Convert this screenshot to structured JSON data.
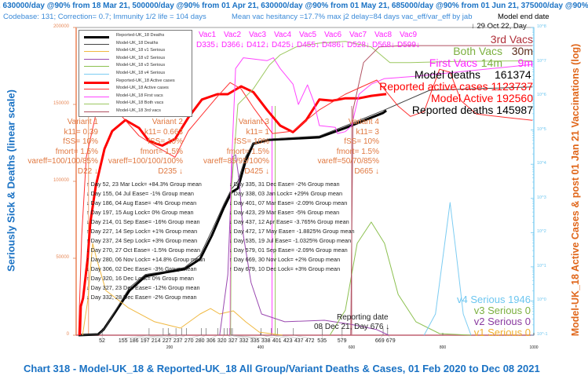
{
  "header": {
    "line1": ", 630000/day @90% from 18 Mar 21, 500000/day @90% from 01 Apr 21, 630000/day @90% from 01 May 21, 685000/day @90% from 01 Jun 21, 375000/day @90% from 13 Ju",
    "line2a": "Codebase: 131; Correction= 0.7; Immunity 1/2 life = 104 days",
    "line2b": "Mean vac hesitancy =17.7% max j2 delay=84 days vac_eff/var_eff by jab",
    "model_end_1": "Model end date",
    "model_end_2": "↓ 29 Oct 22, Day"
  },
  "chart_data": {
    "type": "line",
    "title": "Chart 318 - Model-UK_18 & Reported-UK_18 All Group/Variant Deaths & Cases, 01 Feb 2020 to Dec 08 2021",
    "ylabel": "Seriously Sick & Deaths (linear scale)",
    "y2label": "Model-UK_18 Active Cases & post 01 Jan 21 Vaccinations (log)",
    "xlim": [
      0,
      1000
    ],
    "ylim": [
      0,
      200000
    ],
    "y2lim": [
      0.1,
      100000000
    ],
    "y2scale": "log",
    "grid": false,
    "legend_placement": "top-left",
    "yticks": [
      "200000",
      "150000",
      "100000",
      "50000",
      "0"
    ],
    "y2ticks": [
      "10^8",
      "10^7",
      "10^6",
      "10^5",
      "10^4",
      "10^3",
      "10^2",
      "10^1",
      "10^0",
      "10^-1"
    ],
    "xticks_major": [
      "200",
      "400",
      "600",
      "800",
      "1000"
    ],
    "xticks_events": [
      "52",
      "155",
      "186",
      "197",
      "214",
      "227",
      "237",
      "270",
      "280",
      "306",
      "320",
      "327",
      "332",
      "335",
      "338",
      "401",
      "423",
      "437",
      "472",
      "535",
      "579",
      "669",
      "679"
    ],
    "series": [
      {
        "name": "Reported-UK_18 Deaths",
        "axis": "left",
        "color": "#000000",
        "width": 3,
        "points": [
          [
            0,
            0
          ],
          [
            43,
            500
          ],
          [
            55,
            3600
          ],
          [
            78,
            13800
          ],
          [
            112,
            29100
          ],
          [
            147,
            38300
          ],
          [
            190,
            40800
          ],
          [
            233,
            42900
          ],
          [
            267,
            49500
          ],
          [
            293,
            64800
          ],
          [
            319,
            82700
          ],
          [
            336,
            92900
          ],
          [
            350,
            95400
          ],
          [
            367,
            113300
          ],
          [
            384,
            124500
          ],
          [
            419,
            127000
          ],
          [
            529,
            128600
          ],
          [
            586,
            134700
          ],
          [
            669,
            144500
          ],
          [
            676,
            145987
          ]
        ]
      },
      {
        "name": "Model-UK_18 Deaths",
        "axis": "left",
        "color": "#444444",
        "width": 1,
        "points": [
          [
            0,
            0
          ],
          [
            45,
            600
          ],
          [
            58,
            4500
          ],
          [
            80,
            15500
          ],
          [
            112,
            31000
          ],
          [
            147,
            39500
          ],
          [
            190,
            41500
          ],
          [
            233,
            44000
          ],
          [
            267,
            52000
          ],
          [
            293,
            68000
          ],
          [
            319,
            85000
          ],
          [
            336,
            95000
          ],
          [
            350,
            100000
          ],
          [
            367,
            116000
          ],
          [
            384,
            125000
          ],
          [
            419,
            127500
          ],
          [
            529,
            129500
          ],
          [
            586,
            136000
          ],
          [
            669,
            146000
          ],
          [
            771,
            159200
          ],
          [
            997,
            161374
          ]
        ]
      },
      {
        "name": "Model-UK_18 v1 Serious",
        "axis": "left",
        "color": "#f0b840",
        "width": 1,
        "points": [
          [
            9,
            0
          ],
          [
            21,
            24000
          ],
          [
            31,
            59700
          ],
          [
            40,
            49500
          ],
          [
            60,
            29100
          ],
          [
            109,
            17900
          ],
          [
            167,
            8700
          ],
          [
            224,
            4600
          ],
          [
            267,
            13800
          ],
          [
            290,
            17300
          ],
          [
            310,
            13800
          ],
          [
            340,
            15800
          ],
          [
            367,
            8700
          ],
          [
            397,
            2000
          ],
          [
            448,
            0
          ]
        ]
      },
      {
        "name": "Model-UK_18 v2 Serious",
        "axis": "left",
        "color": "#9a48b0",
        "width": 1,
        "points": [
          [
            310,
            0
          ],
          [
            328,
            39300
          ],
          [
            338,
            115800
          ],
          [
            345,
            117300
          ],
          [
            353,
            100500
          ],
          [
            362,
            64800
          ],
          [
            379,
            34200
          ],
          [
            402,
            13800
          ],
          [
            453,
            8700
          ],
          [
            540,
            9700
          ],
          [
            598,
            7100
          ],
          [
            655,
            3600
          ],
          [
            681,
            0
          ]
        ]
      },
      {
        "name": "Model-UK_18 v3 Serious",
        "axis": "left",
        "color": "#8cc050",
        "width": 1,
        "points": [
          [
            552,
            0
          ],
          [
            586,
            16300
          ],
          [
            612,
            59700
          ],
          [
            643,
            73500
          ],
          [
            672,
            59700
          ],
          [
            702,
            26500
          ],
          [
            741,
            8700
          ],
          [
            793,
            1000
          ],
          [
            862,
            0
          ]
        ]
      },
      {
        "name": "Model-UK_18 v4 Serious",
        "axis": "left",
        "color": "#7cccf2",
        "width": 1,
        "points": [
          [
            759,
            0
          ],
          [
            784,
            13800
          ],
          [
            802,
            54600
          ],
          [
            816,
            86200
          ],
          [
            829,
            54600
          ],
          [
            845,
            13800
          ],
          [
            862,
            0
          ]
        ]
      },
      {
        "name": "Reported-UK_18 Active cases",
        "axis": "right",
        "color": "#ff0000",
        "width": 3,
        "points": [
          [
            3,
            0.1
          ],
          [
            5,
            0.7
          ],
          [
            10,
            1.2
          ],
          [
            20,
            17
          ],
          [
            26,
            200
          ],
          [
            38,
            2300
          ],
          [
            57,
            28000
          ],
          [
            74,
            93000
          ],
          [
            103,
            195000
          ],
          [
            133,
            115000
          ],
          [
            155,
            47000
          ],
          [
            184,
            35000
          ],
          [
            212,
            55000
          ],
          [
            241,
            230000
          ],
          [
            271,
            780000
          ],
          [
            305,
            1120000
          ],
          [
            328,
            1120000
          ],
          [
            357,
            1900000
          ],
          [
            384,
            1290000
          ],
          [
            414,
            390000
          ],
          [
            443,
            135000
          ],
          [
            471,
            87000
          ],
          [
            500,
            195000
          ],
          [
            529,
            780000
          ],
          [
            557,
            720000
          ],
          [
            586,
            850000
          ],
          [
            616,
            850000
          ],
          [
            643,
            1000000
          ],
          [
            669,
            1100000
          ],
          [
            676,
            1123737
          ]
        ]
      },
      {
        "name": "Model-UK_18 Active cases",
        "axis": "right",
        "color": "#ff3030",
        "width": 1,
        "points": [
          [
            0,
            0.1
          ],
          [
            7,
            81
          ],
          [
            17,
            16000
          ],
          [
            48,
            1120000
          ],
          [
            98,
            230000
          ],
          [
            133,
            68000
          ],
          [
            172,
            32000
          ],
          [
            212,
            16000
          ],
          [
            241,
            93000
          ],
          [
            305,
            955000
          ],
          [
            333,
            2450000
          ],
          [
            357,
            1600000
          ],
          [
            384,
            457000
          ],
          [
            426,
            79000
          ],
          [
            471,
            93000
          ],
          [
            529,
            390000
          ],
          [
            586,
            1120000
          ],
          [
            655,
            2900000
          ],
          [
            702,
            500000
          ],
          [
            729,
            250000
          ],
          [
            759,
            347000
          ],
          [
            793,
            6000000
          ],
          [
            816,
            4900000
          ],
          [
            840,
            724000
          ],
          [
            874,
            295000
          ],
          [
            943,
            230000
          ],
          [
            997,
            192560
          ]
        ]
      },
      {
        "name": "Model-UK_18 First vacs",
        "axis": "right",
        "color": "#ff44ff",
        "width": 1,
        "points": [
          [
            333,
            0.1
          ],
          [
            334,
            2000
          ],
          [
            345,
            6300000
          ],
          [
            362,
            13000000
          ],
          [
            384,
            12000000
          ],
          [
            414,
            10700000
          ],
          [
            428,
            13000000
          ],
          [
            443,
            6300000
          ],
          [
            471,
            2200000
          ],
          [
            483,
            560000
          ],
          [
            503,
            2100000
          ],
          [
            517,
            660000
          ],
          [
            529,
            135000
          ],
          [
            564,
            120000
          ],
          [
            569,
            79000
          ],
          [
            586,
            90000
          ],
          [
            600,
            135000
          ],
          [
            616,
            1120000
          ],
          [
            643,
            2200000
          ],
          [
            672,
            3200000
          ],
          [
            736,
            3700000
          ],
          [
            828,
            4900000
          ],
          [
            997,
            8300000
          ]
        ]
      },
      {
        "name": "Model-UK_18 Both vacs",
        "axis": "right",
        "color": "#9cc860",
        "width": 1,
        "points": [
          [
            334,
            0.1
          ],
          [
            336,
            1950
          ],
          [
            350,
            560000
          ],
          [
            384,
            1600000
          ],
          [
            419,
            7900000
          ],
          [
            443,
            15800000
          ],
          [
            478,
            27000000
          ],
          [
            529,
            35000000
          ],
          [
            586,
            39000000
          ],
          [
            643,
            27000000
          ],
          [
            684,
            9400000
          ],
          [
            729,
            9400000
          ],
          [
            828,
            10200000
          ],
          [
            997,
            10600000
          ]
        ]
      },
      {
        "name": "Model-UK_18 3rd vacs",
        "axis": "right",
        "color": "#b05060",
        "width": 1,
        "points": [
          [
            598,
            0.1
          ],
          [
            603,
            390000
          ],
          [
            626,
            9400000
          ],
          [
            660,
            27000000
          ],
          [
            712,
            29500000
          ],
          [
            997,
            29500000
          ]
        ]
      }
    ],
    "variants": [
      {
        "lines": [
          "Variant 1",
          "k11= 0.39",
          "fSS= 10%",
          "fmort= 1.5%",
          "vareff=100/100/85%",
          "D22 ↓"
        ]
      },
      {
        "lines": [
          "Variant 2",
          "k11= 0.663",
          "fSS= 10%",
          "fmort= 1.5%",
          "vareff=100/100/100%",
          "D235 ↓"
        ]
      },
      {
        "lines": [
          "Variant 3",
          "k11= 1",
          "fSS= 10%",
          "fmort= 1.5%",
          "vareff=85/95/100%",
          "D425 ↓"
        ]
      },
      {
        "lines": [
          "Variant 4",
          "k11= 3",
          "fSS= 10%",
          "fmort= 1.5%",
          "vareff=50/70/85%",
          "D665 ↓"
        ]
      }
    ],
    "vacs": [
      {
        "name": "Vac1",
        "day": "D335↓"
      },
      {
        "name": "Vac2",
        "day": "D366↓"
      },
      {
        "name": "Vac3",
        "day": "D412↓"
      },
      {
        "name": "Vac4",
        "day": "D425↓"
      },
      {
        "name": "Vac5",
        "day": "D455↓"
      },
      {
        "name": "Vac6",
        "day": "D486↓"
      },
      {
        "name": "Vac7",
        "day": "D528↓"
      },
      {
        "name": "Vac8",
        "day": "D568↓"
      },
      {
        "name": "Vac9",
        "day": "D599↓"
      }
    ],
    "events": [
      "↑ Day 52, 23 Mar Lock= +84.3% Group mean",
      "↓ Day 155, 04 Jul Ease= -1% Group mean",
      "↓ Day 186, 04 Aug Ease= -4% Group mean",
      "↑ Day 197, 15 Aug Lock= 0% Group mean",
      "↓ Day 214, 01 Sep Ease= -16% Group mean",
      "↑ Day 227, 14 Sep Lock= +1% Group mean",
      "↑ Day 237, 24 Sep Lock= +3% Group mean",
      "↓ Day 270, 27 Oct Ease= -1.5% Group mean",
      "↑ Day 280, 06 Nov Lock= +14.8% Group mean",
      "↓ Day 306, 02 Dec Ease= -3% Group mean",
      "↑ Day 320, 16 Dec Lock= 0% Group mean",
      "↓ Day 327, 23 Dec Ease= -12% Group mean",
      "↓ Day 332, 28 Dec Ease= -2% Group mean",
      "↓ Day 335, 31 Dec Ease= -2% Group mean",
      "↑ Day 338, 03 Jan Lock= +29% Group mean",
      "↓ Day 401, 07 Mar Ease= -2.09% Group mean",
      "↓ Day 423, 29 Mar Ease= -5% Group mean",
      "↓ Day 437, 12 Apr Ease= -3.765% Group mean",
      "↓ Day 472, 17 May Ease= -1.8825% Group mean",
      "↓ Day 535, 19 Jul Ease= -1.0325% Group mean",
      "↓ Day 579, 01 Sep Ease= -2.09% Group mean",
      "↑ Day 669, 30 Nov Lock= +2% Group mean",
      "↑ Day 679, 10 Dec Lock= +3% Group mean"
    ],
    "end_labels": {
      "third_vacs": "3rd Vacs",
      "both_vacs": "Both Vacs",
      "both_vacs_value": "30m",
      "first_vacs": "First Vacs",
      "both_vacs_value2": "14m",
      "first_vacs_value": "9m",
      "model_deaths": "Model deaths",
      "model_deaths_value": "161374",
      "reported_active": "Reported active cases 1123737",
      "model_active": "Model Active 192560",
      "reported_deaths": "Reported deaths 145987",
      "v4": "v4 Serious 1946",
      "v3": "v3 Serious 0",
      "v2": "v2 Serious 0",
      "v1": "v1 Serious 0"
    },
    "reporting_date": [
      "Reporting date",
      "08 Dec 21, Day 676 ↓"
    ]
  }
}
